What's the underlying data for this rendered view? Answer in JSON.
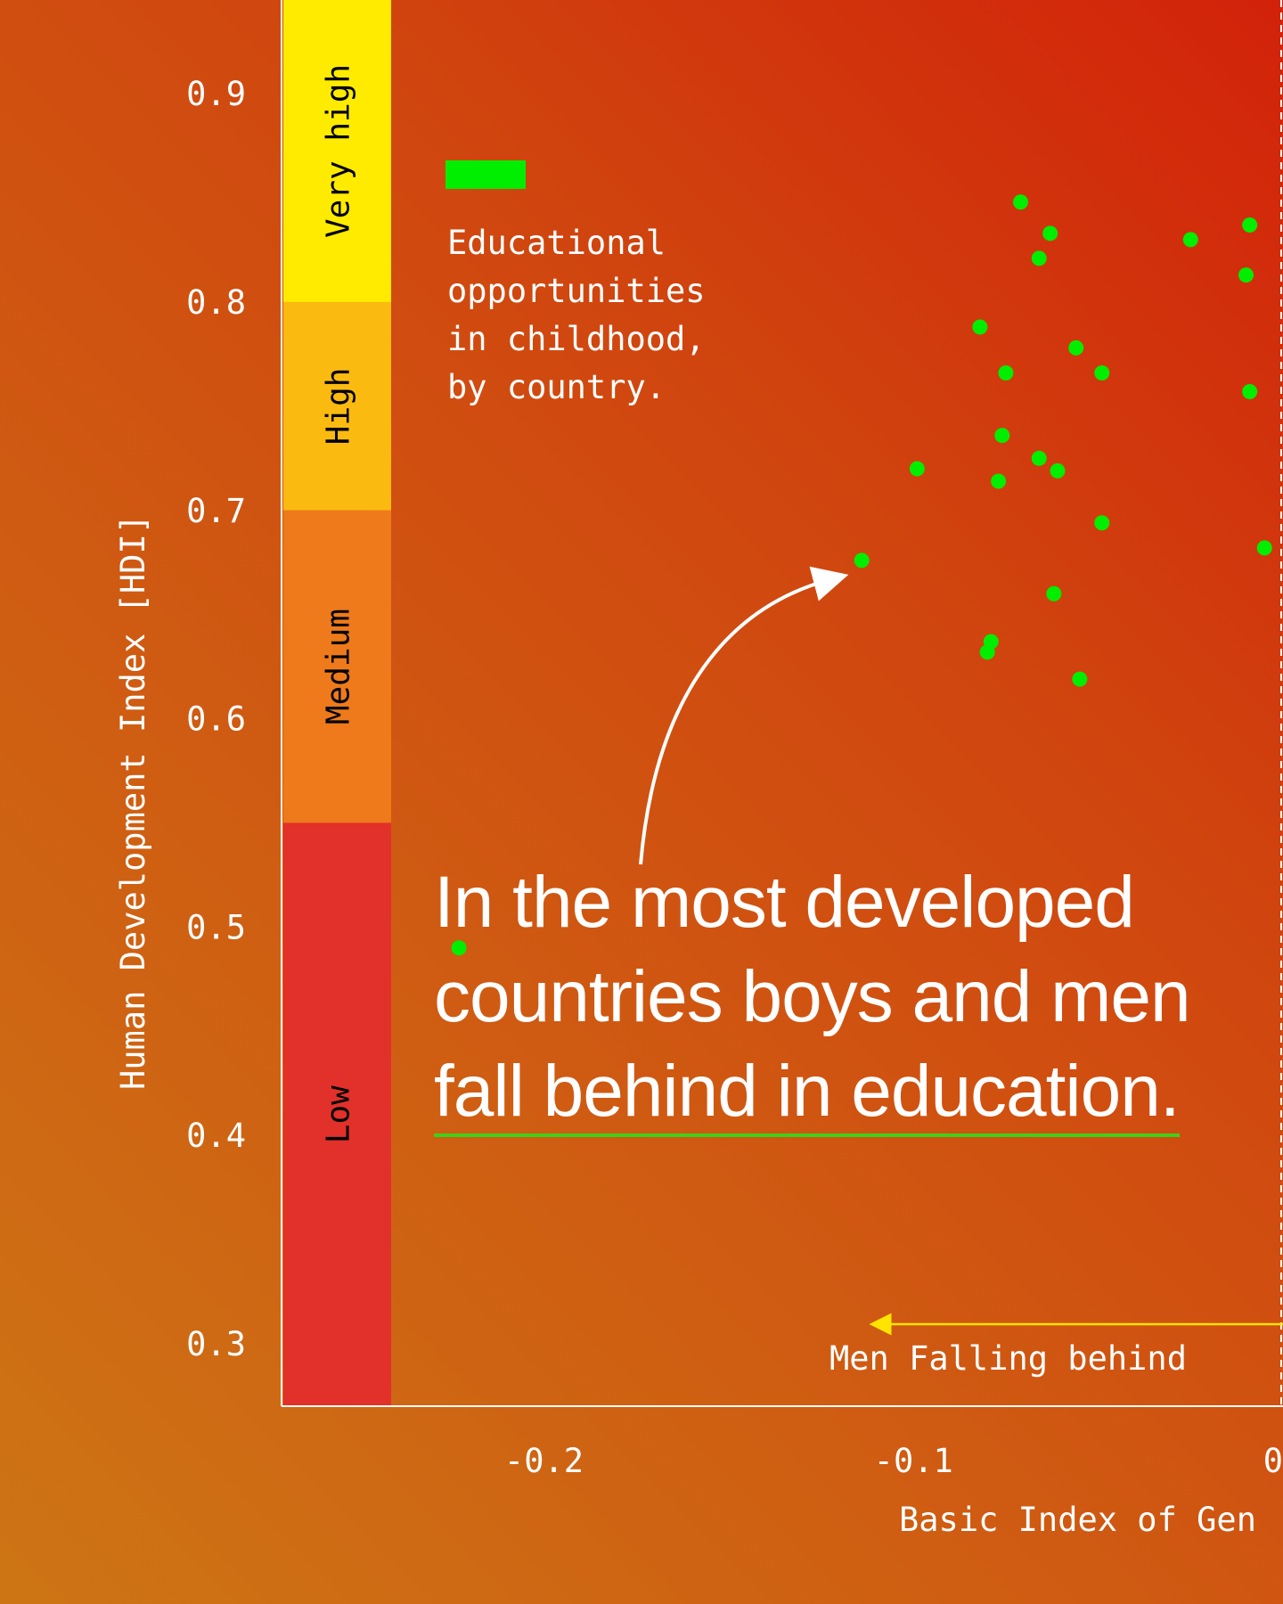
{
  "chart_data": {
    "type": "scatter",
    "ylabel": "Human Development Index [HDI]",
    "xlabel": "Basic Index of Gen",
    "xlim": [
      -0.271,
      0.0
    ],
    "ylim": [
      0.27,
      0.945
    ],
    "x_ticks": [
      {
        "value": -0.2,
        "label": "-0.2"
      },
      {
        "value": -0.1,
        "label": "-0.1"
      },
      {
        "value": 0.0,
        "label": "0."
      }
    ],
    "y_ticks": [
      {
        "value": 0.9,
        "label": "0.9"
      },
      {
        "value": 0.8,
        "label": "0.8"
      },
      {
        "value": 0.7,
        "label": "0.7"
      },
      {
        "value": 0.6,
        "label": "0.6"
      },
      {
        "value": 0.5,
        "label": "0.5"
      },
      {
        "value": 0.4,
        "label": "0.4"
      },
      {
        "value": 0.3,
        "label": "0.3"
      }
    ],
    "hdi_bands": [
      {
        "label": "Very high",
        "from": 0.8,
        "to": 0.945,
        "color": "#ffeb00"
      },
      {
        "label": "High",
        "from": 0.7,
        "to": 0.8,
        "color": "#fbba10"
      },
      {
        "label": "Medium",
        "from": 0.55,
        "to": 0.7,
        "color": "#ee7a1b"
      },
      {
        "label": "Low",
        "from": 0.27,
        "to": 0.55,
        "color": "#e2302a"
      }
    ],
    "point_color": "#00ee00",
    "series": [
      {
        "points": [
          {
            "x": -0.071,
            "y": 0.848
          },
          {
            "x": -0.063,
            "y": 0.833
          },
          {
            "x": -0.066,
            "y": 0.821
          },
          {
            "x": -0.025,
            "y": 0.83
          },
          {
            "x": -0.009,
            "y": 0.837
          },
          {
            "x": -0.01,
            "y": 0.813
          },
          {
            "x": -0.082,
            "y": 0.788
          },
          {
            "x": -0.056,
            "y": 0.778
          },
          {
            "x": -0.049,
            "y": 0.766
          },
          {
            "x": -0.075,
            "y": 0.766
          },
          {
            "x": -0.009,
            "y": 0.757
          },
          {
            "x": -0.076,
            "y": 0.736
          },
          {
            "x": -0.066,
            "y": 0.725
          },
          {
            "x": -0.061,
            "y": 0.719
          },
          {
            "x": -0.099,
            "y": 0.72
          },
          {
            "x": -0.077,
            "y": 0.714
          },
          {
            "x": -0.049,
            "y": 0.694
          },
          {
            "x": -0.005,
            "y": 0.682
          },
          {
            "x": -0.114,
            "y": 0.676
          },
          {
            "x": -0.062,
            "y": 0.66
          },
          {
            "x": -0.079,
            "y": 0.637
          },
          {
            "x": -0.08,
            "y": 0.632
          },
          {
            "x": -0.055,
            "y": 0.619
          },
          {
            "x": -0.223,
            "y": 0.49
          }
        ]
      }
    ]
  },
  "legend": {
    "swatch_color": "#00ee00",
    "lines": [
      "Educational",
      "opportunities",
      "in childhood,",
      "by country."
    ]
  },
  "headline": {
    "line1": "In the most developed",
    "line2_light": "countries ",
    "line2_bold": "boys and men",
    "line3": "fall behind in education."
  },
  "annotation": {
    "arrow_label": "Men Falling behind",
    "arrow_color": "#ffe400"
  }
}
